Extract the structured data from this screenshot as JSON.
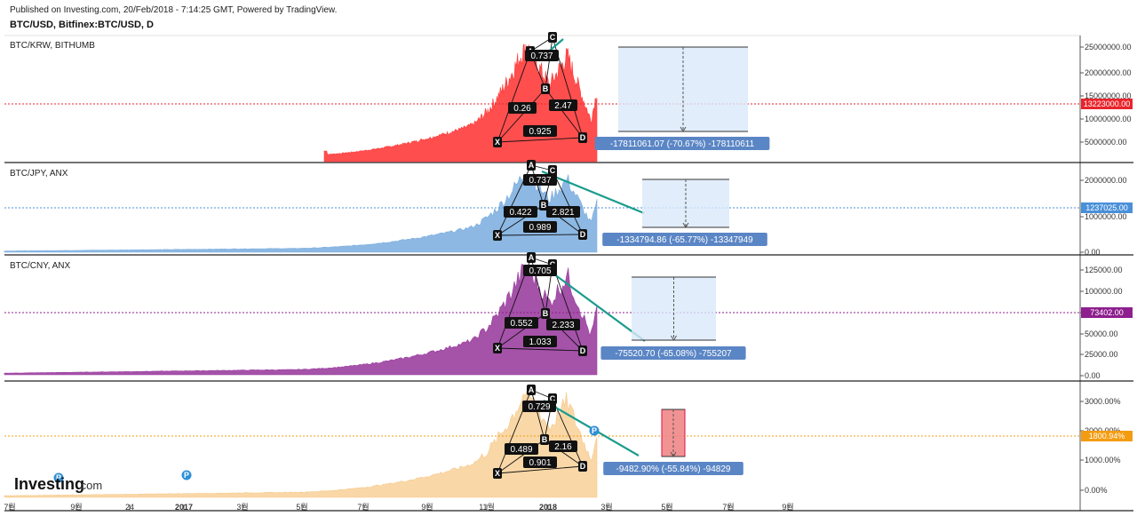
{
  "header": {
    "published": "Published on Investing.com, 20/Feb/2018 - 7:14:25 GMT, Powered by TradingView.",
    "symbol_title": "BTC/USD, Bitfinex:BTC/USD, D"
  },
  "branding": {
    "logo": "Investing",
    "logo_suffix": ".com"
  },
  "x_axis": {
    "ticks": [
      "7월",
      "9월",
      "24",
      "2017",
      "3월",
      "5월",
      "7월",
      "9월",
      "11월",
      "2018",
      "3월",
      "5월",
      "7월",
      "9월"
    ],
    "bold_ticks": [
      "2017",
      "2018"
    ]
  },
  "chart_data": [
    {
      "type": "area",
      "label": "BTC/KRW, BITHUMB",
      "color": "#ff3b3b",
      "yticks": [
        "25000000.00",
        "20000000.00",
        "15000000.00",
        "10000000.00",
        "5000000.00"
      ],
      "ytick_values": [
        25000000,
        20000000,
        15000000,
        10000000,
        5000000
      ],
      "last_value": "13223000.00",
      "last_color": "#e8242b",
      "pattern_points": [
        "X",
        "A",
        "B",
        "C",
        "D"
      ],
      "ratios": [
        "0.737",
        "0.26",
        "2.47",
        "0.925"
      ],
      "measure": "-17811061.07 (-70.67%) -178110611",
      "measure_box": "blue"
    },
    {
      "type": "area",
      "label": "BTC/JPY, ANX",
      "color": "#7fb0e0",
      "yticks": [
        "2000000.00",
        "1000000.00",
        "0.00"
      ],
      "ytick_values": [
        2000000,
        1000000,
        0
      ],
      "last_value": "1237025.00",
      "last_color": "#4a90d9",
      "pattern_points": [
        "X",
        "A",
        "B",
        "C",
        "D"
      ],
      "ratios": [
        "0.737",
        "0.422",
        "2.821",
        "0.989"
      ],
      "measure": "-1334794.86 (-65.77%) -13347949",
      "measure_box": "blue"
    },
    {
      "type": "area",
      "label": "BTC/CNY, ANX",
      "color": "#9b3fa0",
      "yticks": [
        "125000.00",
        "100000.00",
        "75000.00",
        "50000.00",
        "25000.00",
        "0.00"
      ],
      "ytick_values": [
        125000,
        100000,
        75000,
        50000,
        25000,
        0
      ],
      "last_value": "73402.00",
      "last_color": "#8e1f8e",
      "pattern_points": [
        "X",
        "A",
        "B",
        "C",
        "D"
      ],
      "ratios": [
        "0.705",
        "0.552",
        "2.233",
        "1.033"
      ],
      "measure": "-75520.70 (-65.08%) -755207",
      "measure_box": "blue"
    },
    {
      "type": "area",
      "label": "",
      "color": "#f7c98a",
      "yticks": [
        "3000.00%",
        "2000.00%",
        "1000.00%",
        "0.00%"
      ],
      "ytick_values": [
        3000,
        2000,
        1000,
        0
      ],
      "last_value": "1800.94%",
      "last_color": "#f39c12",
      "pattern_points": [
        "X",
        "A",
        "B",
        "C",
        "D"
      ],
      "ratios": [
        "0.729",
        "0.489",
        "2.16",
        "0.901"
      ],
      "measure": "-9482.90% (-55.84%) -94829",
      "measure_box": "red"
    }
  ]
}
